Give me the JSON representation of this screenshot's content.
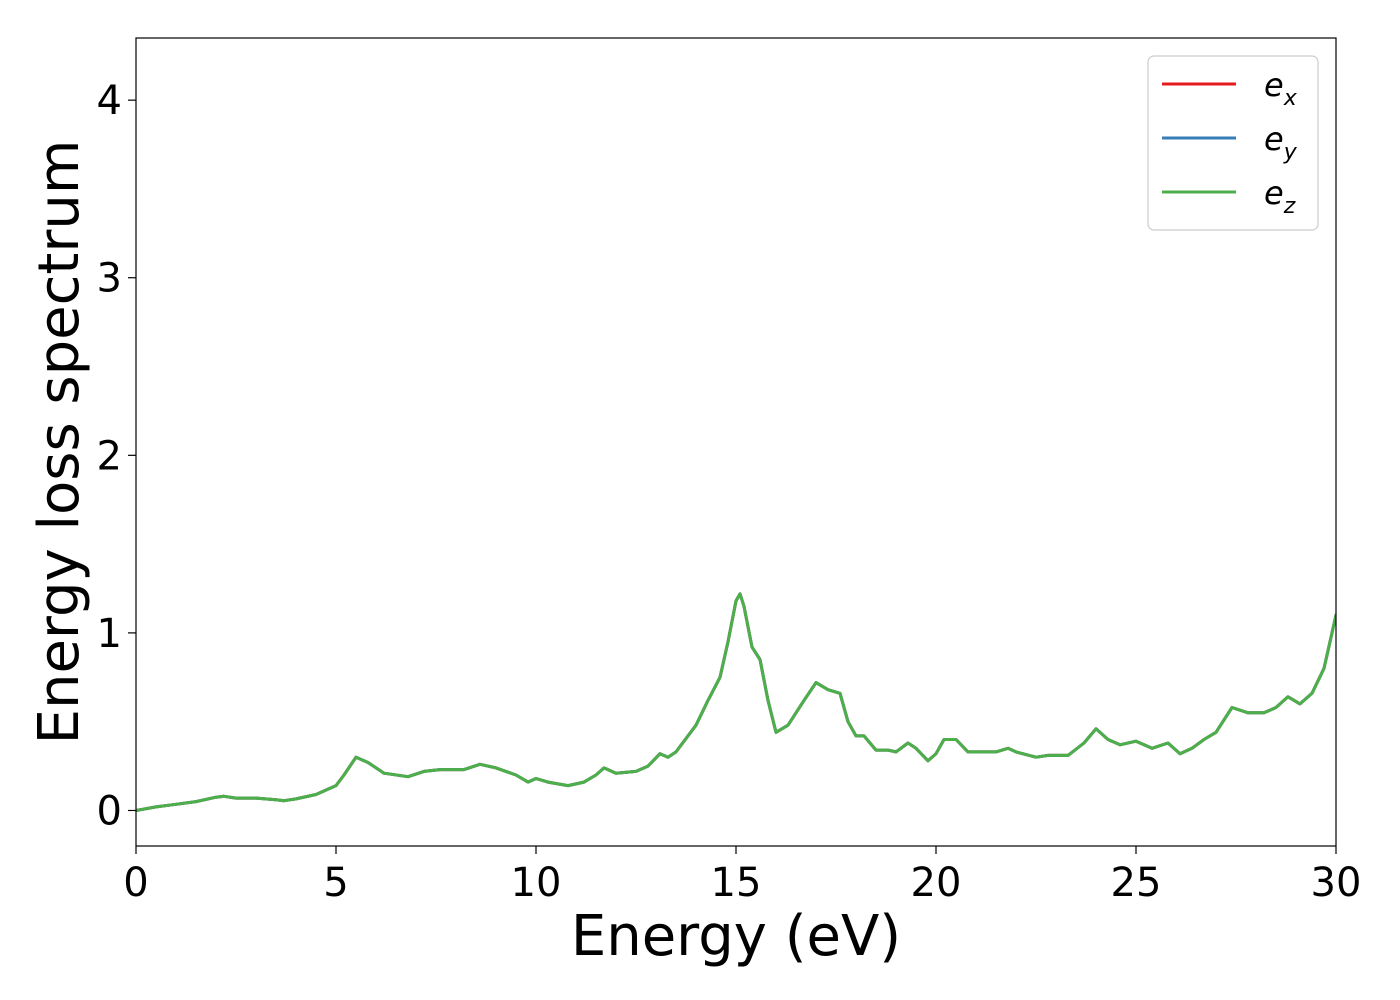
{
  "chart_data": {
    "type": "line",
    "title": "",
    "xlabel": "Energy (eV)",
    "ylabel": "Energy loss spectrum",
    "xlim": [
      0,
      30
    ],
    "ylim": [
      -0.2,
      4.35
    ],
    "xticks": [
      0,
      5,
      10,
      15,
      20,
      25,
      30
    ],
    "yticks": [
      0,
      1,
      2,
      3,
      4
    ],
    "grid": false,
    "legend_position": "top-right",
    "colors": {
      "e_x": "#e41a1c",
      "e_y": "#377eb8",
      "e_z": "#4daf4a"
    },
    "x": [
      0,
      0.5,
      1,
      1.5,
      2,
      2.2,
      2.5,
      3,
      3.5,
      3.7,
      4,
      4.5,
      5,
      5.2,
      5.5,
      5.8,
      6.2,
      6.8,
      7.2,
      7.6,
      8.2,
      8.6,
      9,
      9.5,
      9.8,
      10,
      10.3,
      10.8,
      11.2,
      11.5,
      11.7,
      12,
      12.5,
      12.8,
      13.1,
      13.3,
      13.5,
      14,
      14.3,
      14.6,
      14.8,
      15,
      15.1,
      15.2,
      15.4,
      15.6,
      15.8,
      16,
      16.3,
      16.7,
      17,
      17.3,
      17.6,
      17.8,
      18,
      18.2,
      18.5,
      18.8,
      19,
      19.3,
      19.5,
      19.8,
      20,
      20.2,
      20.5,
      20.8,
      21,
      21.5,
      21.8,
      22,
      22.5,
      22.8,
      23,
      23.3,
      23.7,
      24,
      24.3,
      24.6,
      25,
      25.4,
      25.8,
      26.1,
      26.4,
      26.7,
      27,
      27.4,
      27.8,
      28.2,
      28.5,
      28.8,
      29.1,
      29.4,
      29.7,
      30
    ],
    "series": [
      {
        "name": "e_x",
        "values": [
          0,
          0.02,
          0.035,
          0.05,
          0.075,
          0.08,
          0.07,
          0.07,
          0.06,
          0.055,
          0.065,
          0.09,
          0.14,
          0.2,
          0.3,
          0.27,
          0.21,
          0.19,
          0.22,
          0.23,
          0.23,
          0.26,
          0.24,
          0.2,
          0.16,
          0.18,
          0.16,
          0.14,
          0.16,
          0.2,
          0.24,
          0.21,
          0.22,
          0.25,
          0.32,
          0.3,
          0.33,
          0.48,
          0.62,
          0.75,
          0.95,
          1.18,
          1.22,
          1.15,
          0.92,
          0.85,
          0.62,
          0.44,
          0.48,
          0.62,
          0.72,
          0.68,
          0.66,
          0.5,
          0.42,
          0.42,
          0.34,
          0.34,
          0.33,
          0.38,
          0.35,
          0.28,
          0.32,
          0.4,
          0.4,
          0.33,
          0.33,
          0.33,
          0.35,
          0.33,
          0.3,
          0.31,
          0.31,
          0.31,
          0.38,
          0.46,
          0.4,
          0.37,
          0.39,
          0.35,
          0.38,
          0.32,
          0.35,
          0.4,
          0.44,
          0.58,
          0.55,
          0.55,
          0.58,
          0.64,
          0.6,
          0.66,
          0.8,
          1.1
        ]
      },
      {
        "name": "e_y",
        "values": [
          0,
          0.02,
          0.035,
          0.05,
          0.075,
          0.08,
          0.07,
          0.07,
          0.06,
          0.055,
          0.065,
          0.09,
          0.14,
          0.2,
          0.3,
          0.27,
          0.21,
          0.19,
          0.22,
          0.23,
          0.23,
          0.26,
          0.24,
          0.2,
          0.16,
          0.18,
          0.16,
          0.14,
          0.16,
          0.2,
          0.24,
          0.21,
          0.22,
          0.25,
          0.32,
          0.3,
          0.33,
          0.48,
          0.62,
          0.75,
          0.95,
          1.18,
          1.22,
          1.15,
          0.92,
          0.85,
          0.62,
          0.44,
          0.48,
          0.62,
          0.72,
          0.68,
          0.66,
          0.5,
          0.42,
          0.42,
          0.34,
          0.34,
          0.33,
          0.38,
          0.35,
          0.28,
          0.32,
          0.4,
          0.4,
          0.33,
          0.33,
          0.33,
          0.35,
          0.33,
          0.3,
          0.31,
          0.31,
          0.31,
          0.38,
          0.46,
          0.4,
          0.37,
          0.39,
          0.35,
          0.38,
          0.32,
          0.35,
          0.4,
          0.44,
          0.58,
          0.55,
          0.55,
          0.58,
          0.64,
          0.6,
          0.66,
          0.8,
          1.1
        ]
      },
      {
        "name": "e_z",
        "values": [
          0,
          0.02,
          0.035,
          0.05,
          0.075,
          0.08,
          0.07,
          0.07,
          0.06,
          0.055,
          0.065,
          0.09,
          0.14,
          0.2,
          0.3,
          0.27,
          0.21,
          0.19,
          0.22,
          0.23,
          0.23,
          0.26,
          0.24,
          0.2,
          0.16,
          0.18,
          0.16,
          0.14,
          0.16,
          0.2,
          0.24,
          0.21,
          0.22,
          0.25,
          0.32,
          0.3,
          0.33,
          0.48,
          0.62,
          0.75,
          0.95,
          1.18,
          1.22,
          1.15,
          0.92,
          0.85,
          0.62,
          0.44,
          0.48,
          0.62,
          0.72,
          0.68,
          0.66,
          0.5,
          0.42,
          0.42,
          0.34,
          0.34,
          0.33,
          0.38,
          0.35,
          0.28,
          0.32,
          0.4,
          0.4,
          0.33,
          0.33,
          0.33,
          0.35,
          0.33,
          0.3,
          0.31,
          0.31,
          0.31,
          0.38,
          0.46,
          0.4,
          0.37,
          0.39,
          0.35,
          0.38,
          0.32,
          0.35,
          0.4,
          0.44,
          0.58,
          0.55,
          0.55,
          0.58,
          0.64,
          0.6,
          0.66,
          0.8,
          1.1
        ]
      }
    ],
    "legend": [
      {
        "base": "e",
        "sub": "x",
        "series": "e_x"
      },
      {
        "base": "e",
        "sub": "y",
        "series": "e_y"
      },
      {
        "base": "e",
        "sub": "z",
        "series": "e_z"
      }
    ]
  }
}
